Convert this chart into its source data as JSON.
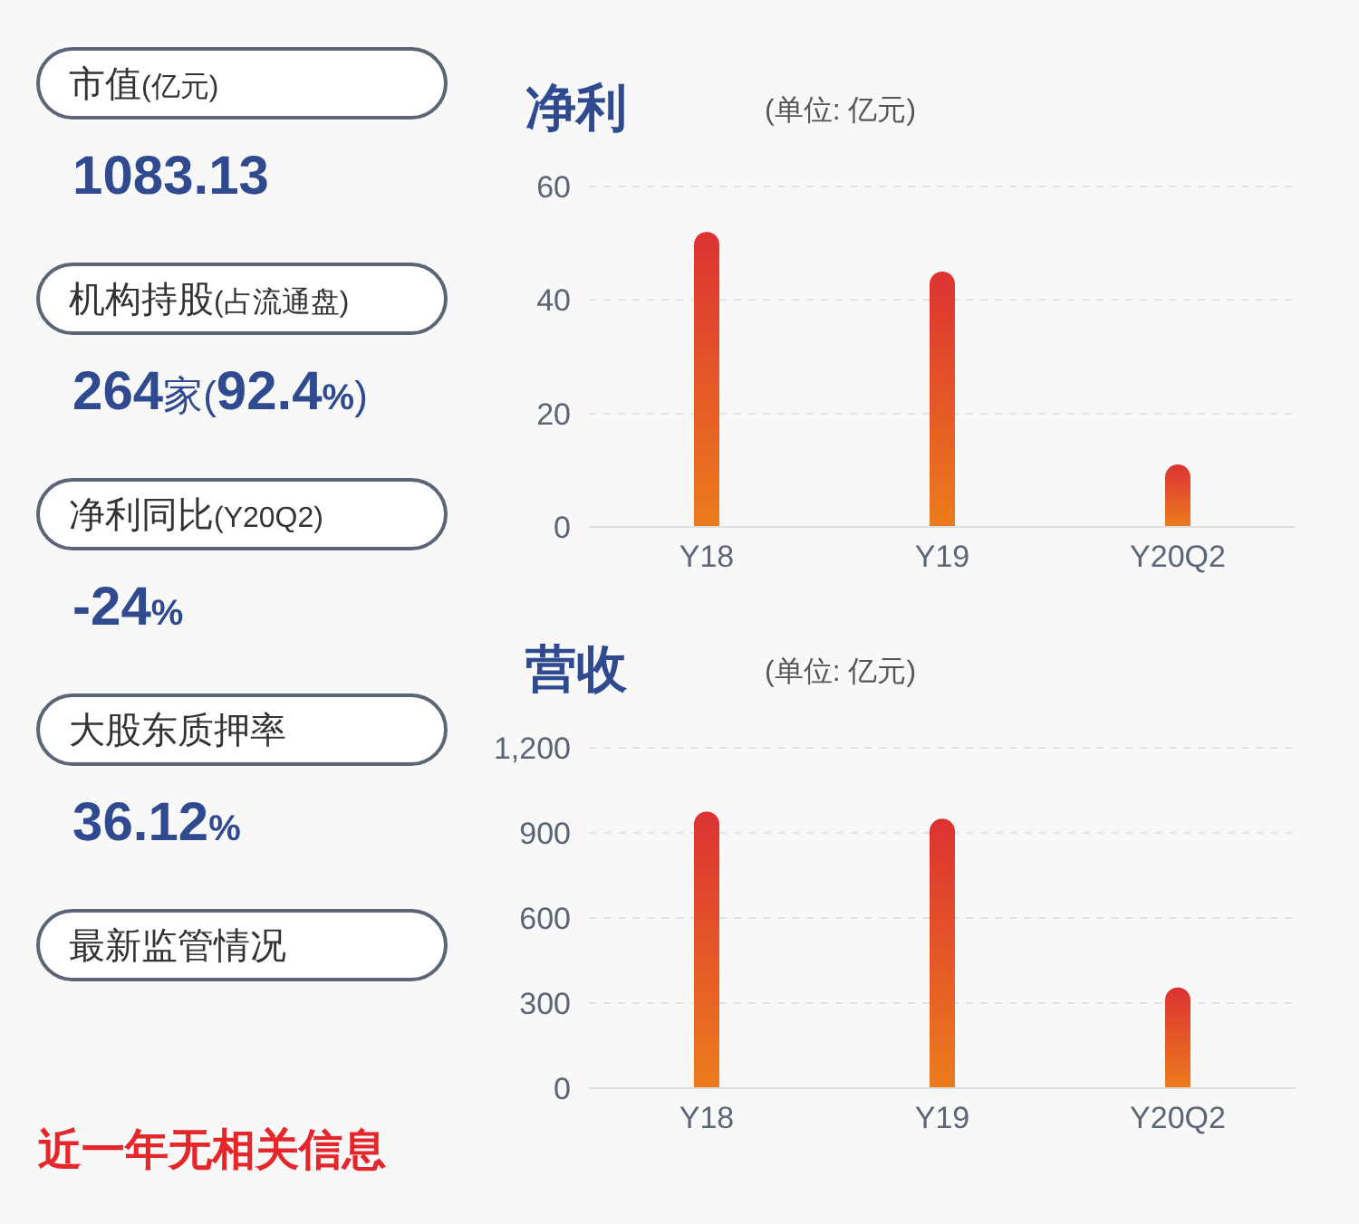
{
  "chart_data": [
    {
      "type": "other",
      "annotations": [
        "市值(亿元)",
        "1083.13",
        "机构持股(占流通盘)",
        "264家(92.4%)",
        "净利同比(Y20Q2)",
        "-24%",
        "大股东质押率",
        "36.12%",
        "最新监管情况",
        "近一年无相关信息"
      ]
    },
    {
      "type": "bar",
      "title": "净利",
      "subtitle": "(单位: 亿元)",
      "categories": [
        "Y18",
        "Y19",
        "Y20Q2"
      ],
      "values": [
        52,
        45,
        11
      ],
      "color": "#dc3232",
      "ylim": [
        0,
        60
      ],
      "yticks": [
        0,
        20,
        40,
        60
      ],
      "grid": "y"
    },
    {
      "type": "bar",
      "title": "营收",
      "subtitle": "(单位: 亿元)",
      "categories": [
        "Y18",
        "Y19",
        "Y20Q2"
      ],
      "values": [
        975,
        950,
        355
      ],
      "color": "#dc3232",
      "ylim": [
        0,
        1200
      ],
      "yticks": [
        0,
        300,
        600,
        900,
        {
          "value": 1200,
          "label": "1,200"
        }
      ],
      "grid": "y"
    }
  ]
}
